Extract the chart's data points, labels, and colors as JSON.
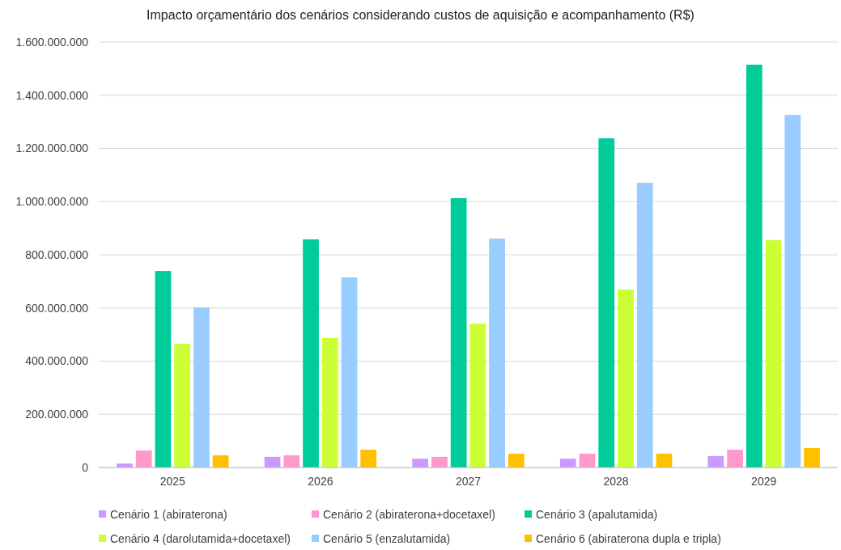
{
  "chart_data": {
    "type": "bar",
    "title": "Impacto orçamentário dos cenários considerando custos de aquisição e acompanhamento (R$)",
    "categories": [
      "2025",
      "2026",
      "2027",
      "2028",
      "2029"
    ],
    "series": [
      {
        "name": "Cenário 1 (abiraterona)",
        "color": "#cc99ff",
        "values": [
          15000000,
          40000000,
          33000000,
          33000000,
          43000000
        ]
      },
      {
        "name": "Cenário 2 (abiraterona+docetaxel)",
        "color": "#ff99cc",
        "values": [
          64000000,
          46000000,
          40000000,
          52000000,
          67000000
        ]
      },
      {
        "name": "Cenário 3 (apalutamida)",
        "color": "#00cc99",
        "values": [
          739000000,
          858000000,
          1013000000,
          1238000000,
          1515000000
        ]
      },
      {
        "name": "Cenário 4 (darolutamida+docetaxel)",
        "color": "#ccff33",
        "values": [
          465000000,
          487000000,
          541000000,
          669000000,
          855000000
        ]
      },
      {
        "name": "Cenário 5 (enzalutamida)",
        "color": "#99ccff",
        "values": [
          602000000,
          715000000,
          861000000,
          1071000000,
          1326000000
        ]
      },
      {
        "name": "Cenário 6 (abiraterona dupla e tripla)",
        "color": "#ffc000",
        "values": [
          46000000,
          67000000,
          52000000,
          52000000,
          73000000
        ]
      }
    ],
    "ylim": [
      0,
      1600000000
    ],
    "yticks": [
      0,
      {
        "value": 200000000,
        "label": "200.000.000"
      },
      {
        "value": 400000000,
        "label": "400.000.000"
      },
      {
        "value": 600000000,
        "label": "600.000.000"
      },
      {
        "value": 800000000,
        "label": "800.000.000"
      },
      {
        "value": 1000000000,
        "label": "1.000.000.000"
      },
      {
        "value": 1200000000,
        "label": "1.200.000.000"
      },
      {
        "value": 1400000000,
        "label": "1.400.000.000"
      },
      {
        "value": 1600000000,
        "label": "1.600.000.000"
      }
    ],
    "grid": "y",
    "legend": "bottom"
  }
}
